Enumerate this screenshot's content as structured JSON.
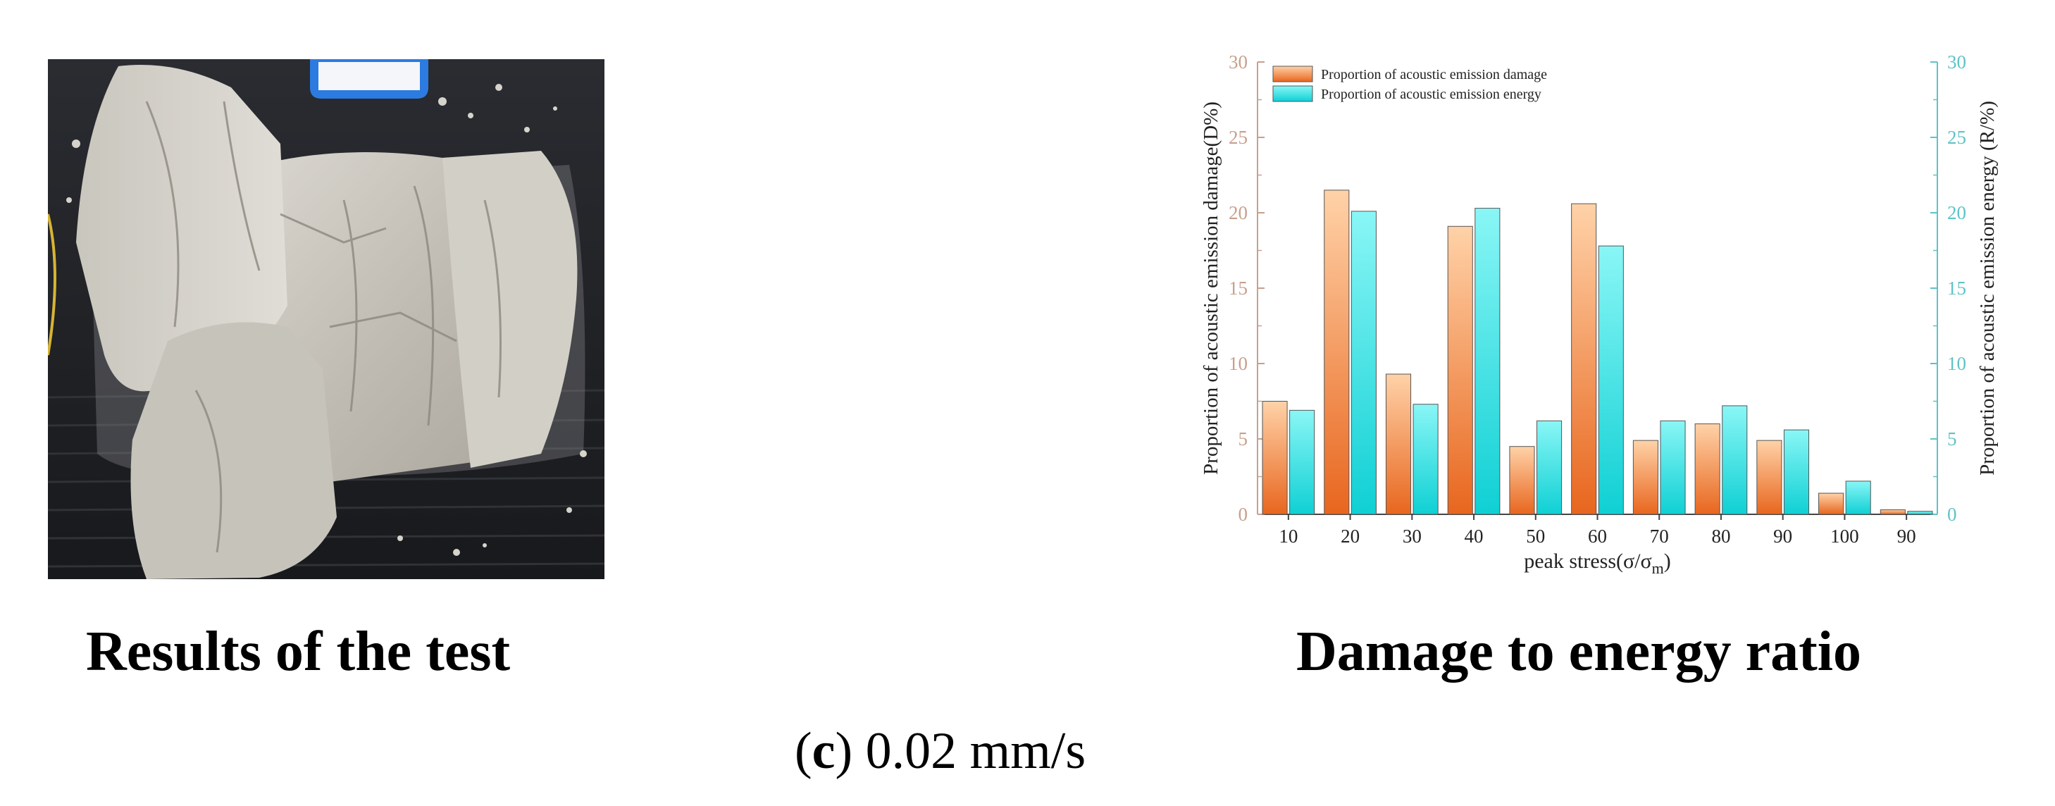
{
  "figure": {
    "left_caption": "Results of the test",
    "right_caption": "Damage to energy ratio",
    "sub_label": "c",
    "sub_value": "0.02 mm/s"
  },
  "colors": {
    "damage_bar": "#f2a26c",
    "energy_bar": "#2ee0e3",
    "left_axis": "#c8a08c",
    "right_axis": "#5ec3c6",
    "rock_light": "#cfccc5",
    "rock_dark": "#9b978e",
    "background": "#1c1e22",
    "tag": "#2c7be0"
  },
  "chart_data": {
    "type": "bar",
    "categories": [
      "10",
      "20",
      "30",
      "40",
      "50",
      "60",
      "70",
      "80",
      "90",
      "100",
      "90"
    ],
    "series": [
      {
        "name": "Proportion of acoustic emission damage",
        "values": [
          7.5,
          21.5,
          9.3,
          19.1,
          4.5,
          20.6,
          4.9,
          6.0,
          4.9,
          1.4,
          0.3
        ]
      },
      {
        "name": "Proportion of acoustic emission energy",
        "values": [
          6.9,
          20.1,
          7.3,
          20.3,
          6.2,
          17.8,
          6.2,
          7.2,
          5.6,
          2.2,
          0.2
        ]
      }
    ],
    "xlabel": "peak stress(σ/σ",
    "xlabel_sub": "m",
    "xlabel_end": ")",
    "ylabel": "Proportion of acoustic emission damage(D%)",
    "y2label": "Proportion of acoustic emission energy (R/%)",
    "ylim": [
      0,
      30
    ],
    "y2lim": [
      0,
      30
    ],
    "yticks": [
      "0",
      "5",
      "10",
      "15",
      "20",
      "25",
      "30"
    ],
    "y2ticks": [
      "0",
      "5",
      "10",
      "15",
      "20",
      "25",
      "30"
    ],
    "legend_position": "top-left"
  }
}
